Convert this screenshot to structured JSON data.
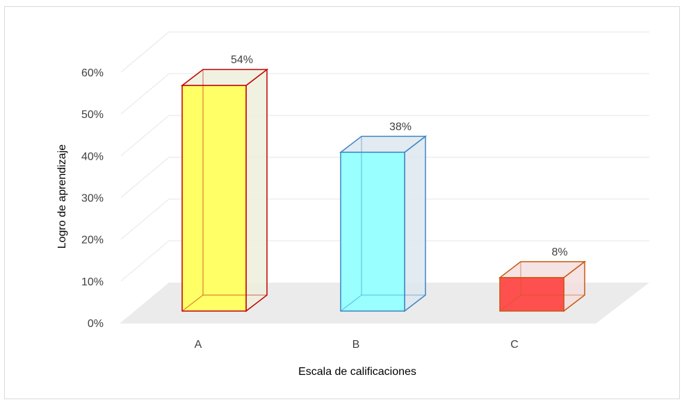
{
  "chart_data": {
    "type": "bar",
    "title": "",
    "xlabel": "Escala de calificaciones",
    "ylabel": "Logro de aprendizaje",
    "categories": [
      "A",
      "B",
      "C"
    ],
    "values": [
      54,
      38,
      8
    ],
    "data_labels": [
      "54%",
      "38%",
      "8%"
    ],
    "y_ticks": [
      "0%",
      "10%",
      "20%",
      "30%",
      "40%",
      "50%",
      "60%"
    ],
    "ylim": [
      0,
      60
    ],
    "grid": true,
    "legend": "none",
    "bar_style": "3d",
    "colors": {
      "fill": [
        "#ffff66",
        "#99ffff",
        "#ff5050"
      ],
      "edge": [
        "#c00000",
        "#3d85c6",
        "#c55a11"
      ],
      "side": [
        "#eeeedd",
        "#dde8ee",
        "#f5dede"
      ],
      "floor": "#ebebeb",
      "grid": "#eeeeee"
    }
  }
}
